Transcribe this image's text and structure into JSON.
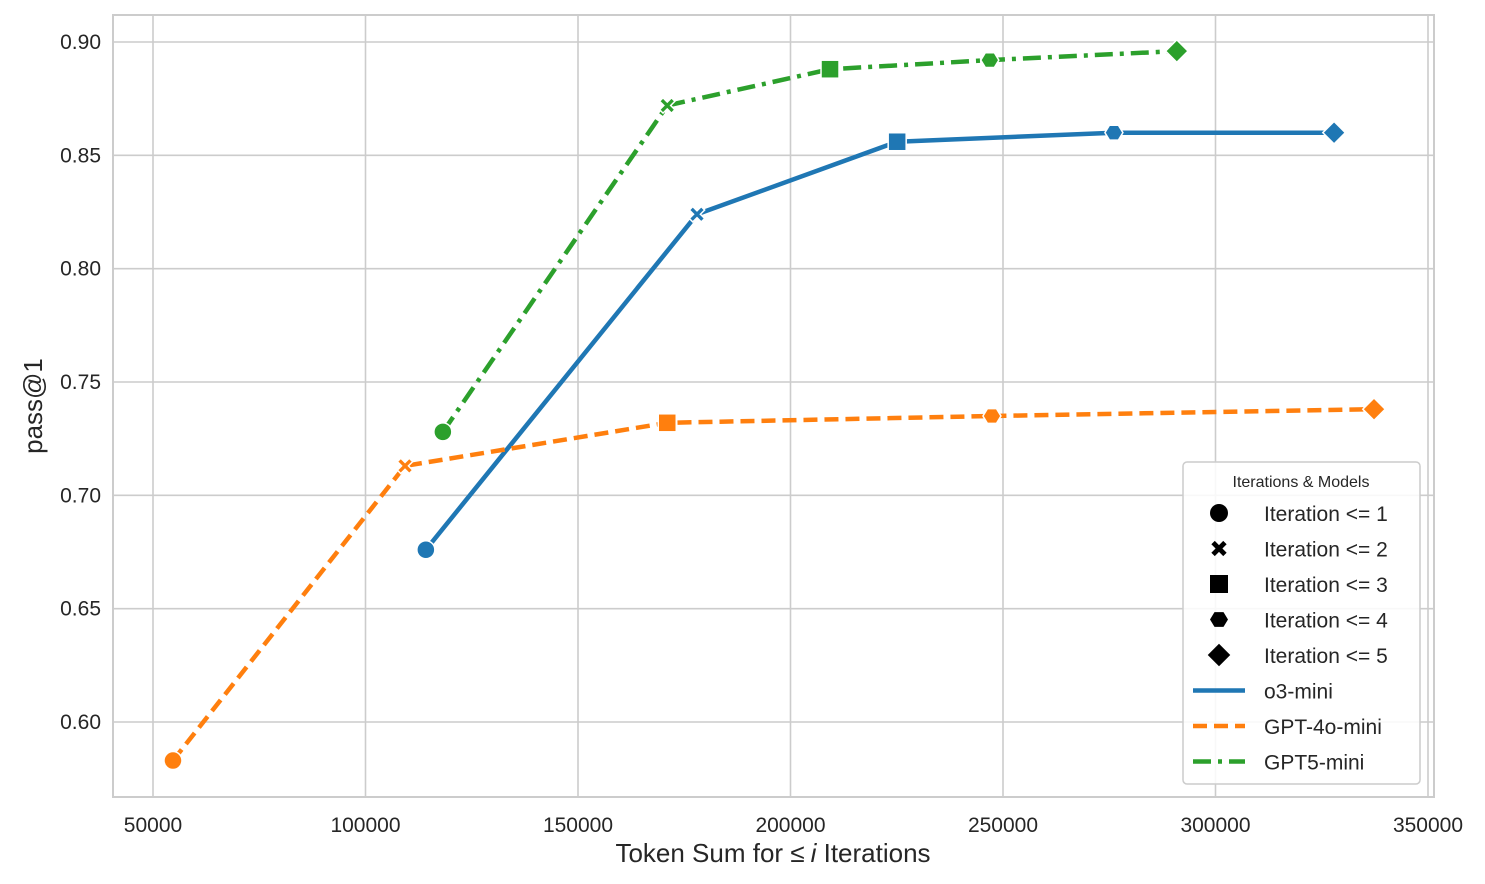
{
  "chart_data": {
    "type": "line",
    "title": "",
    "xlabel": "Token Sum for ≤ i Iterations",
    "xlabel_parts": {
      "prefix": "Token Sum for ",
      "symbol": "≤",
      "italic": "i",
      "suffix": " Iterations"
    },
    "ylabel": "pass@1",
    "xlim": [
      42000,
      352000
    ],
    "ylim": [
      0.567,
      0.912
    ],
    "x_ticks": [
      50000,
      100000,
      150000,
      200000,
      250000,
      300000,
      350000
    ],
    "x_tick_labels": [
      "50000",
      "100000",
      "150000",
      "200000",
      "250000",
      "300000",
      "350000"
    ],
    "y_ticks": [
      0.6,
      0.65,
      0.7,
      0.75,
      0.8,
      0.85,
      0.9
    ],
    "y_tick_labels": [
      "0.60",
      "0.65",
      "0.70",
      "0.75",
      "0.80",
      "0.85",
      "0.90"
    ],
    "grid": true,
    "legend_position": "lower right",
    "legend_title": "Iterations & Models",
    "marker_legend": [
      {
        "label": "Iteration <= 1",
        "marker": "circle"
      },
      {
        "label": "Iteration <= 2",
        "marker": "x"
      },
      {
        "label": "Iteration <= 3",
        "marker": "square"
      },
      {
        "label": "Iteration <= 4",
        "marker": "hexagon"
      },
      {
        "label": "Iteration <= 5",
        "marker": "diamond"
      }
    ],
    "series": [
      {
        "name": "o3-mini",
        "color": "#1f77b4",
        "line_style": "solid",
        "x": [
          114200,
          178000,
          225100,
          276100,
          327900
        ],
        "y": [
          0.676,
          0.824,
          0.856,
          0.86,
          0.86
        ]
      },
      {
        "name": "GPT-4o-mini",
        "color": "#ff7f0e",
        "line_style": "dashed",
        "x": [
          54700,
          109300,
          171000,
          247400,
          337300
        ],
        "y": [
          0.583,
          0.713,
          0.732,
          0.735,
          0.738
        ]
      },
      {
        "name": "GPT5-mini",
        "color": "#2ca02c",
        "line_style": "dashdot",
        "x": [
          118200,
          171000,
          209300,
          246900,
          290900
        ],
        "y": [
          0.728,
          0.872,
          0.888,
          0.892,
          0.896
        ]
      }
    ]
  }
}
